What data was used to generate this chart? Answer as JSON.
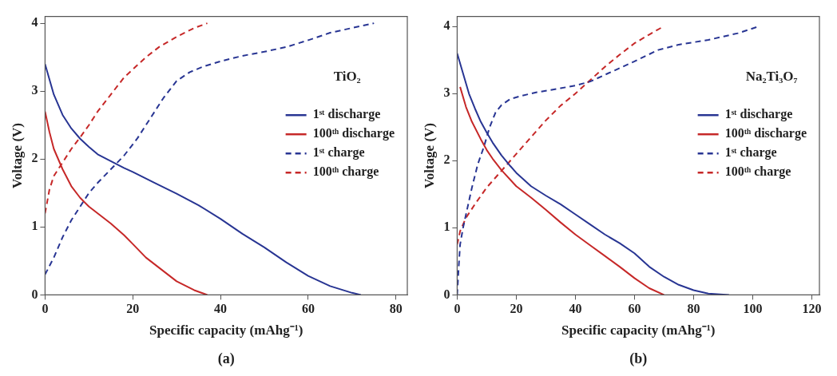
{
  "chart_data": [
    {
      "type": "line",
      "xlabel": "Specific capacity (mAhg⁻¹)",
      "ylabel": "Voltage (V)",
      "xlim": [
        0,
        82.6
      ],
      "xticks": [
        0,
        20,
        40,
        60,
        80
      ],
      "ylim": [
        0,
        4.1
      ],
      "yticks": [
        0,
        1,
        2,
        3,
        4
      ],
      "grid": false,
      "legend": "right",
      "marker": "none",
      "annotations": [
        "TiO₂",
        "(a)"
      ],
      "series": [
        {
          "name": "1ˢᵗ discharge",
          "color": "#283593",
          "line_style": "solid",
          "x": [
            0,
            2,
            4,
            6,
            8,
            10,
            12,
            15,
            18,
            20,
            25,
            30,
            35,
            40,
            45,
            50,
            55,
            60,
            65,
            70,
            72
          ],
          "values": [
            3.4,
            2.95,
            2.65,
            2.45,
            2.3,
            2.18,
            2.07,
            1.97,
            1.87,
            1.81,
            1.65,
            1.49,
            1.32,
            1.12,
            0.9,
            0.7,
            0.48,
            0.28,
            0.13,
            0.03,
            0
          ]
        },
        {
          "name": "100ᵗʰ discharge",
          "color": "#c62828",
          "line_style": "solid",
          "x": [
            0,
            1,
            2,
            4,
            6,
            8,
            10,
            12,
            15,
            18,
            20,
            23,
            26,
            30,
            34,
            37
          ],
          "values": [
            2.7,
            2.4,
            2.15,
            1.85,
            1.6,
            1.43,
            1.3,
            1.2,
            1.05,
            0.88,
            0.75,
            0.55,
            0.4,
            0.2,
            0.07,
            0
          ]
        },
        {
          "name": "1ˢᵗ charge",
          "color": "#283593",
          "line_style": "dashed",
          "x": [
            0,
            2,
            4,
            6,
            8,
            10,
            12,
            15,
            18,
            21,
            24,
            27,
            30,
            33,
            36,
            40,
            45,
            50,
            55,
            60,
            65,
            70,
            75
          ],
          "values": [
            0.3,
            0.55,
            0.85,
            1.1,
            1.3,
            1.5,
            1.65,
            1.85,
            2.05,
            2.3,
            2.6,
            2.9,
            3.15,
            3.28,
            3.36,
            3.44,
            3.52,
            3.58,
            3.65,
            3.75,
            3.86,
            3.93,
            4.0
          ]
        },
        {
          "name": "100ᵗʰ charge",
          "color": "#c62828",
          "line_style": "dashed",
          "x": [
            0,
            1,
            2,
            4,
            6,
            8,
            10,
            12,
            15,
            18,
            20,
            23,
            26,
            30,
            34,
            37
          ],
          "values": [
            1.2,
            1.55,
            1.75,
            1.95,
            2.15,
            2.32,
            2.5,
            2.7,
            2.95,
            3.2,
            3.32,
            3.5,
            3.65,
            3.8,
            3.93,
            4.0
          ]
        }
      ]
    },
    {
      "type": "line",
      "xlabel": "Specific capacity (mAhg⁻¹)",
      "ylabel": "Voltage (V)",
      "xlim": [
        0,
        122.6
      ],
      "xticks": [
        0,
        20,
        40,
        60,
        80,
        100,
        120
      ],
      "ylim": [
        0,
        4.15
      ],
      "yticks": [
        0,
        1,
        2,
        3,
        4
      ],
      "grid": false,
      "legend": "right",
      "marker": "none",
      "annotations": [
        "Na₂Ti₃O₇",
        "(b)"
      ],
      "series": [
        {
          "name": "1ˢᵗ discharge",
          "color": "#283593",
          "line_style": "solid",
          "x": [
            0,
            2,
            4,
            6,
            8,
            10,
            12,
            15,
            18,
            20,
            25,
            30,
            35,
            40,
            45,
            50,
            55,
            60,
            65,
            70,
            75,
            80,
            85,
            92
          ],
          "values": [
            3.6,
            3.3,
            3.0,
            2.78,
            2.58,
            2.42,
            2.27,
            2.08,
            1.92,
            1.82,
            1.62,
            1.48,
            1.35,
            1.2,
            1.05,
            0.9,
            0.77,
            0.62,
            0.42,
            0.27,
            0.15,
            0.07,
            0.02,
            0
          ]
        },
        {
          "name": "100ᵗʰ discharge",
          "color": "#c62828",
          "line_style": "solid",
          "x": [
            1,
            3,
            5,
            8,
            10,
            12,
            15,
            20,
            25,
            30,
            35,
            40,
            45,
            50,
            55,
            60,
            65,
            70
          ],
          "values": [
            3.1,
            2.8,
            2.58,
            2.32,
            2.16,
            2.03,
            1.86,
            1.62,
            1.45,
            1.27,
            1.08,
            0.9,
            0.74,
            0.58,
            0.42,
            0.25,
            0.1,
            0
          ]
        },
        {
          "name": "1ˢᵗ charge",
          "color": "#283593",
          "line_style": "dashed",
          "x": [
            0,
            0.5,
            1,
            2,
            3,
            5,
            7,
            9,
            11,
            13,
            15,
            18,
            22,
            27,
            35,
            40,
            45,
            50,
            55,
            60,
            68,
            75,
            85,
            95,
            102
          ],
          "values": [
            0,
            0.4,
            0.75,
            1.0,
            1.2,
            1.6,
            1.95,
            2.2,
            2.5,
            2.72,
            2.83,
            2.92,
            2.97,
            3.02,
            3.08,
            3.12,
            3.18,
            3.28,
            3.38,
            3.48,
            3.65,
            3.73,
            3.8,
            3.9,
            4.0
          ]
        },
        {
          "name": "100ᵗʰ charge",
          "color": "#c62828",
          "line_style": "dashed",
          "x": [
            0,
            1,
            3,
            6,
            10,
            15,
            20,
            25,
            30,
            35,
            40,
            45,
            50,
            55,
            60,
            65,
            69
          ],
          "values": [
            0.75,
            0.95,
            1.15,
            1.35,
            1.6,
            1.85,
            2.1,
            2.35,
            2.6,
            2.82,
            3.0,
            3.2,
            3.4,
            3.58,
            3.75,
            3.88,
            3.98
          ]
        }
      ]
    }
  ]
}
